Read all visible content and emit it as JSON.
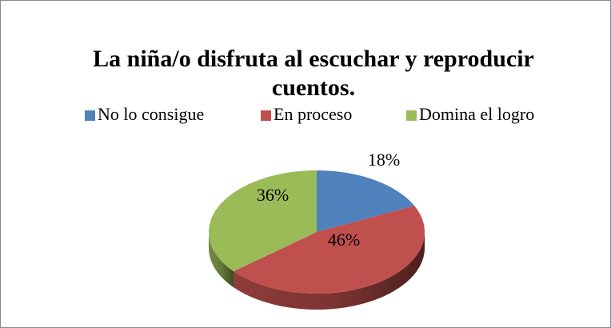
{
  "chart_data": {
    "type": "pie",
    "title": "La niña/o disfruta al escuchar y reproducir cuentos.",
    "categories": [
      "No lo consigue",
      "En proceso",
      "Domina el logro"
    ],
    "values": [
      18,
      46,
      36
    ],
    "value_labels": [
      "18%",
      "46%",
      "36%"
    ],
    "colors": [
      "#4f81bd",
      "#c0504d",
      "#9bbb59"
    ],
    "legend": "top",
    "three_d": true
  }
}
